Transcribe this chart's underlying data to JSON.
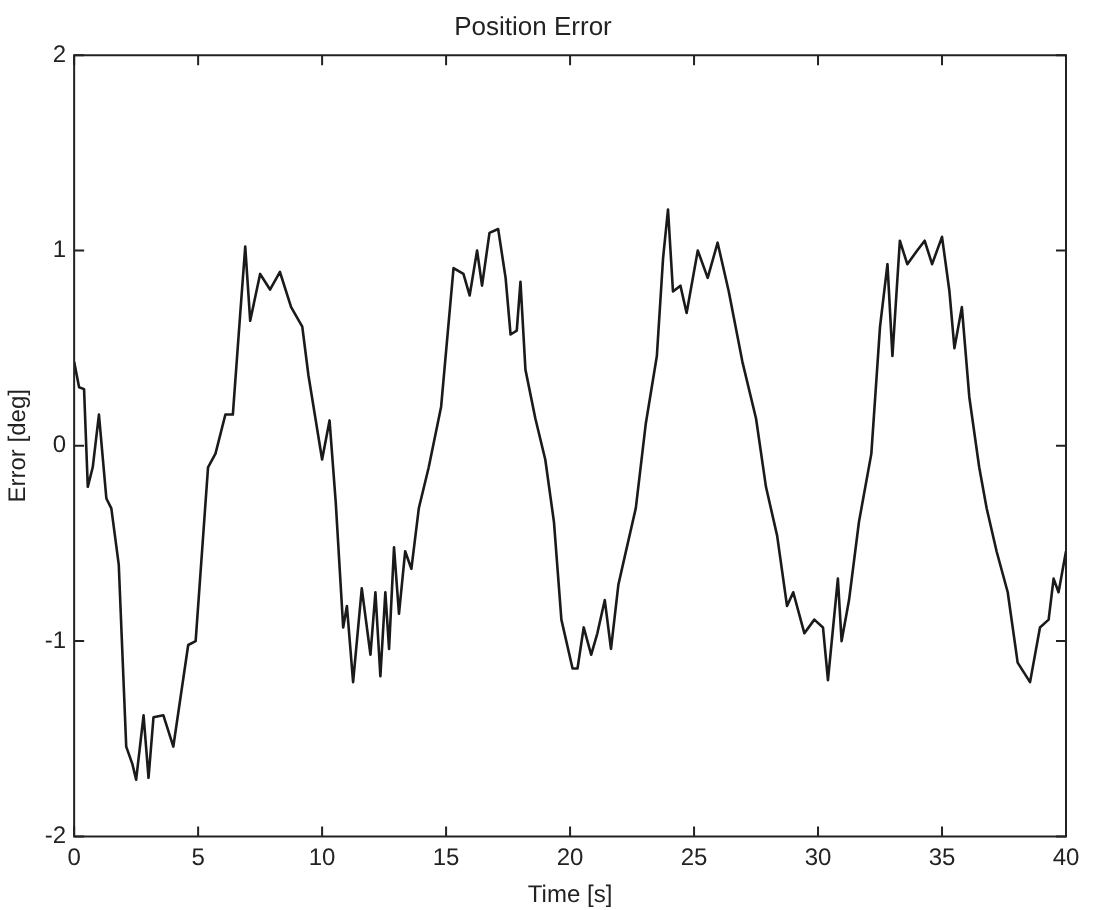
{
  "chart_data": {
    "type": "line",
    "title": "Position Error",
    "xlabel": "Time [s]",
    "ylabel": "Error [deg]",
    "xlim": [
      0,
      40
    ],
    "ylim": [
      -2,
      2
    ],
    "xticks": [
      0,
      5,
      10,
      15,
      20,
      25,
      30,
      35,
      40
    ],
    "yticks": [
      -2,
      -1,
      0,
      1,
      2
    ],
    "grid": false,
    "legend": false,
    "marker": "none",
    "line_style": "solid",
    "series": [
      {
        "color": "#1a1a1a",
        "x": [
          0,
          0.2,
          0.4,
          0.55,
          0.75,
          1.0,
          1.3,
          1.5,
          1.8,
          2.1,
          2.35,
          2.5,
          2.8,
          3.0,
          3.2,
          3.6,
          4.0,
          4.6,
          4.9,
          5.4,
          5.7,
          6.1,
          6.4,
          6.7,
          6.9,
          7.1,
          7.5,
          7.9,
          8.3,
          8.75,
          9.2,
          9.45,
          10.0,
          10.3,
          10.55,
          10.85,
          11.0,
          11.25,
          11.6,
          11.95,
          12.15,
          12.35,
          12.55,
          12.7,
          12.9,
          13.1,
          13.35,
          13.6,
          13.9,
          14.3,
          14.8,
          15.3,
          15.7,
          15.95,
          16.25,
          16.45,
          16.75,
          17.1,
          17.4,
          17.6,
          17.85,
          18.0,
          18.2,
          18.6,
          19.0,
          19.35,
          19.65,
          20.1,
          20.3,
          20.55,
          20.85,
          21.1,
          21.4,
          21.65,
          21.95,
          22.2,
          22.65,
          23.05,
          23.5,
          23.75,
          23.95,
          24.15,
          24.45,
          24.7,
          25.15,
          25.55,
          25.95,
          26.4,
          26.95,
          27.5,
          27.9,
          28.35,
          28.75,
          29.0,
          29.45,
          29.85,
          30.2,
          30.4,
          30.8,
          30.95,
          31.25,
          31.65,
          32.15,
          32.5,
          32.8,
          33.0,
          33.3,
          33.6,
          34.0,
          34.3,
          34.6,
          35.0,
          35.3,
          35.5,
          35.8,
          36.1,
          36.5,
          36.8,
          37.2,
          37.65,
          38.05,
          38.55,
          38.95,
          39.3,
          39.5,
          39.7,
          40.0
        ],
        "values": [
          0.43,
          0.3,
          0.29,
          -0.21,
          -0.11,
          0.16,
          -0.27,
          -0.32,
          -0.61,
          -1.54,
          -1.63,
          -1.71,
          -1.38,
          -1.7,
          -1.39,
          -1.38,
          -1.54,
          -1.02,
          -1.0,
          -0.11,
          -0.04,
          0.16,
          0.16,
          0.68,
          1.02,
          0.64,
          0.88,
          0.8,
          0.89,
          0.71,
          0.61,
          0.36,
          -0.07,
          0.13,
          -0.29,
          -0.93,
          -0.82,
          -1.21,
          -0.73,
          -1.07,
          -0.75,
          -1.18,
          -0.75,
          -1.04,
          -0.52,
          -0.86,
          -0.54,
          -0.63,
          -0.32,
          -0.11,
          0.2,
          0.91,
          0.88,
          0.77,
          1.0,
          0.82,
          1.09,
          1.11,
          0.86,
          0.57,
          0.59,
          0.84,
          0.39,
          0.14,
          -0.07,
          -0.39,
          -0.89,
          -1.14,
          -1.14,
          -0.93,
          -1.07,
          -0.96,
          -0.79,
          -1.04,
          -0.71,
          -0.57,
          -0.32,
          0.11,
          0.46,
          0.96,
          1.21,
          0.79,
          0.82,
          0.68,
          1.0,
          0.86,
          1.04,
          0.79,
          0.43,
          0.14,
          -0.21,
          -0.46,
          -0.82,
          -0.75,
          -0.96,
          -0.89,
          -0.93,
          -1.2,
          -0.68,
          -1.0,
          -0.79,
          -0.39,
          -0.04,
          0.61,
          0.93,
          0.46,
          1.05,
          0.93,
          1.0,
          1.05,
          0.93,
          1.07,
          0.79,
          0.5,
          0.71,
          0.25,
          -0.11,
          -0.32,
          -0.54,
          -0.75,
          -1.11,
          -1.21,
          -0.93,
          -0.89,
          -0.68,
          -0.75,
          -0.54
        ]
      }
    ]
  }
}
